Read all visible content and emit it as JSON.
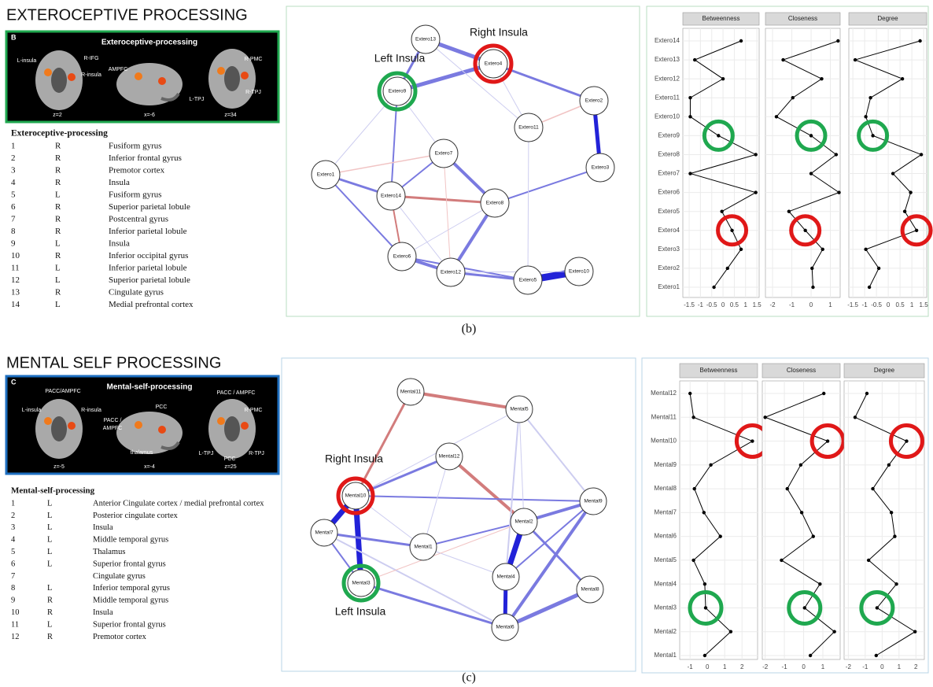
{
  "sections": [
    {
      "heading": "EXTEROCEPTIVE PROCESSING",
      "panel": {
        "letter": "B",
        "title": "Exteroceptive-processing",
        "labels": [
          "L-insula",
          "R-IFG",
          "R-insula",
          "AMPFC",
          "R-PMC",
          "R-TPJ",
          "L-TPJ",
          "z=2",
          "x=-6",
          "z=34"
        ]
      },
      "table": {
        "title": "Exteroceptive-processing",
        "rows": [
          [
            1,
            "R",
            "Fusiform gyrus"
          ],
          [
            2,
            "R",
            "Inferior frontal gyrus"
          ],
          [
            3,
            "R",
            "Premotor cortex"
          ],
          [
            4,
            "R",
            "Insula"
          ],
          [
            5,
            "L",
            "Fusiform gyrus"
          ],
          [
            6,
            "R",
            "Superior parietal lobule"
          ],
          [
            7,
            "R",
            "Postcentral gyrus"
          ],
          [
            8,
            "R",
            "Inferior parietal lobule"
          ],
          [
            9,
            "L",
            "Insula"
          ],
          [
            10,
            "R",
            "Inferior occipital gyrus"
          ],
          [
            11,
            "L",
            "Inferior parietal lobule"
          ],
          [
            12,
            "L",
            "Superior parietal lobule"
          ],
          [
            13,
            "R",
            "Cingulate gyrus"
          ],
          [
            14,
            "L",
            "Medial prefrontal cortex"
          ]
        ]
      },
      "annotations": [
        "Right Insula",
        "Left Insula"
      ],
      "caption": "(b)"
    },
    {
      "heading": "MENTAL SELF PROCESSING",
      "panel": {
        "letter": "C",
        "title": "Mental-self-processing",
        "labels": [
          "PACC/AMPFC",
          "L-insula",
          "R-insula",
          "PCC",
          "PACC /",
          "AMPFC",
          "thalamus",
          "PACC / AMPFC",
          "R-PMC",
          "L-TPJ",
          "R-TPJ",
          "PCC",
          "z=-5",
          "x=-4",
          "z=25"
        ]
      },
      "table": {
        "title": "Mental-self-processing",
        "rows": [
          [
            1,
            "L",
            "Anterior Cingulate cortex / medial prefrontal cortex"
          ],
          [
            2,
            "L",
            "Posterior cingulate cortex"
          ],
          [
            3,
            "L",
            "Insula"
          ],
          [
            4,
            "L",
            "Middle temporal gyrus"
          ],
          [
            5,
            "L",
            "Thalamus"
          ],
          [
            6,
            "L",
            "Superior frontal gyrus"
          ],
          [
            7,
            null,
            "Cingulate gyrus"
          ],
          [
            8,
            "L",
            "Inferior temporal gyrus"
          ],
          [
            9,
            "R",
            "Middle temporal gyrus"
          ],
          [
            10,
            "R",
            "Insula"
          ],
          [
            11,
            "L",
            "Superior frontal gyrus"
          ],
          [
            12,
            "R",
            "Premotor cortex"
          ]
        ]
      },
      "annotations": [
        "Right Insula",
        "Left Insula"
      ],
      "caption": "(c)"
    }
  ],
  "chart_data": [
    {
      "type": "dot",
      "color": "#000000",
      "categories": [
        "Extero1",
        "Extero2",
        "Extero3",
        "Extero4",
        "Extero5",
        "Extero6",
        "Extero7",
        "Extero8",
        "Extero9",
        "Extero10",
        "Extero11",
        "Extero12",
        "Extero13",
        "Extero14"
      ],
      "series": [
        {
          "name": "Betweenness",
          "values": [
            -0.4,
            0.2,
            0.8,
            0.4,
            -0.05,
            1.45,
            -1.45,
            1.45,
            -0.2,
            -1.45,
            -1.45,
            0,
            -1.25,
            0.8
          ],
          "xlim": [
            -1.78,
            1.6
          ],
          "xticks": [
            -1.5,
            -1,
            -0.5,
            0,
            0.5,
            1,
            1.5
          ]
        },
        {
          "name": "Closeness",
          "values": [
            0.1,
            0.05,
            0.6,
            -0.3,
            -1.15,
            1.45,
            0,
            1.3,
            0,
            -1.8,
            -0.95,
            0.55,
            -1.45,
            1.4
          ],
          "xlim": [
            -2.37,
            1.51
          ],
          "xticks": [
            -2,
            -1,
            0,
            1
          ]
        },
        {
          "name": "Degree",
          "values": [
            -0.8,
            -0.4,
            -0.95,
            1.2,
            0.7,
            0.95,
            0.2,
            1.4,
            -0.65,
            -0.95,
            -0.75,
            0.6,
            -1.4,
            1.35
          ],
          "xlim": [
            -1.67,
            1.63
          ],
          "xticks": [
            -1.5,
            -1,
            -0.5,
            0,
            0.5,
            1,
            1.5
          ]
        }
      ]
    },
    {
      "type": "dot",
      "color": "#000000",
      "categories": [
        "Mental1",
        "Mental2",
        "Mental3",
        "Mental4",
        "Mental5",
        "Mental6",
        "Mental7",
        "Mental8",
        "Mental9",
        "Mental10",
        "Mental11",
        "Mental12"
      ],
      "series": [
        {
          "name": "Betweenness",
          "values": [
            -0.15,
            1.35,
            -0.1,
            -0.15,
            -0.8,
            0.75,
            -0.2,
            -0.75,
            0.2,
            2.6,
            -0.8,
            -1
          ],
          "xlim": [
            -1.6,
            2.9
          ],
          "xticks": [
            -1,
            0,
            1,
            2
          ]
        },
        {
          "name": "Closeness",
          "values": [
            0.35,
            1.6,
            0.05,
            0.85,
            -1.15,
            0.5,
            -0.1,
            -0.85,
            -0.15,
            1.25,
            -2,
            1.05
          ],
          "xlim": [
            -2.15,
            1.9
          ],
          "xticks": [
            -2,
            -1,
            0,
            1
          ]
        },
        {
          "name": "Degree",
          "values": [
            -0.35,
            1.95,
            -0.3,
            0.85,
            -0.8,
            0.75,
            0.55,
            -0.55,
            0.4,
            1.45,
            -1.6,
            -0.9
          ],
          "xlim": [
            -2.25,
            2.5
          ],
          "xticks": [
            -2,
            -1,
            0,
            1,
            2
          ]
        }
      ]
    }
  ]
}
